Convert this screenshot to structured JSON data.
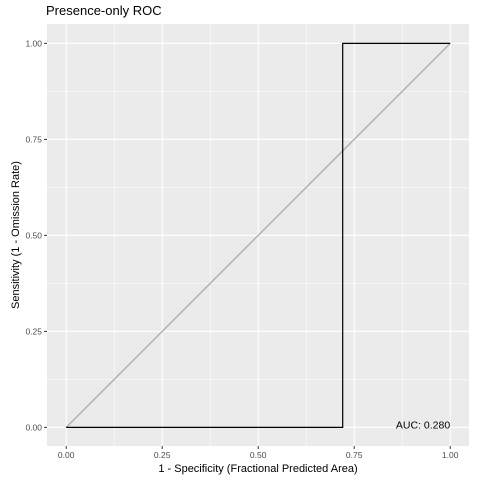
{
  "chart_data": {
    "type": "line",
    "title": "Presence-only ROC",
    "xlabel": "1 - Specificity (Fractional Predicted Area)",
    "ylabel": "Sensitivity (1 - Omission Rate)",
    "xlim": [
      0,
      1
    ],
    "ylim": [
      0,
      1
    ],
    "x_ticks": [
      "0.00",
      "0.25",
      "0.50",
      "0.75",
      "1.00"
    ],
    "y_ticks": [
      "0.00",
      "0.25",
      "0.50",
      "0.75",
      "1.00"
    ],
    "grid": true,
    "annotation": "AUC: 0.280",
    "series": [
      {
        "color": "#000000",
        "x": [
          0,
          0.72,
          0.72,
          1.0
        ],
        "y": [
          0,
          0,
          1.0,
          1.0
        ]
      },
      {
        "color": "#b3b3b3",
        "x": [
          0,
          1
        ],
        "y": [
          0,
          1
        ]
      }
    ],
    "panel_background": "#ebebeb",
    "grid_color": "#ffffff"
  }
}
